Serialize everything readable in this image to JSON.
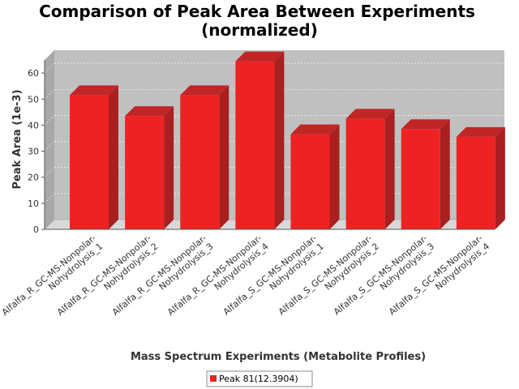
{
  "chart_data": {
    "type": "bar",
    "title_line1": "Comparison of Peak Area Between Experiments",
    "title_line2": "(normalized)",
    "xlabel": "Mass Spectrum Experiments (Metabolite Profiles)",
    "ylabel": "Peak Area (1e-3)",
    "ylim": [
      0,
      65
    ],
    "yticks": [
      0,
      10,
      20,
      30,
      40,
      50,
      60
    ],
    "grid": true,
    "legend_position": "bottom",
    "categories": [
      [
        "Alfalfa_R_GC-MS-Nonpolar-",
        "Nohydrolysis_1"
      ],
      [
        "Alfalfa_R_GC-MS-Nonpolar-",
        "Nohydrolysis_2"
      ],
      [
        "Alfalfa_R_GC-MS-Nonpolar-",
        "Nohydrolysis_3"
      ],
      [
        "Alfalfa_R_GC-MS-Nonpolar-",
        "Nohydrolysis_4"
      ],
      [
        "Alfalfa_S_GC-MS-Nonpolar-",
        "Nohydrolysis_1"
      ],
      [
        "Alfalfa_S_GC-MS-Nonpolar-",
        "Nohydrolysis_2"
      ],
      [
        "Alfalfa_S_GC-MS-Nonpolar-",
        "Nohydrolysis_3"
      ],
      [
        "Alfalfa_S_GC-MS-Nonpolar-",
        "Nohydrolysis_4"
      ]
    ],
    "series": [
      {
        "name": "Peak 81(12.3904)",
        "color": "#ee2222",
        "values": [
          51.5,
          43.5,
          51.5,
          64.5,
          36.5,
          42.5,
          38.5,
          35.5
        ]
      }
    ]
  }
}
